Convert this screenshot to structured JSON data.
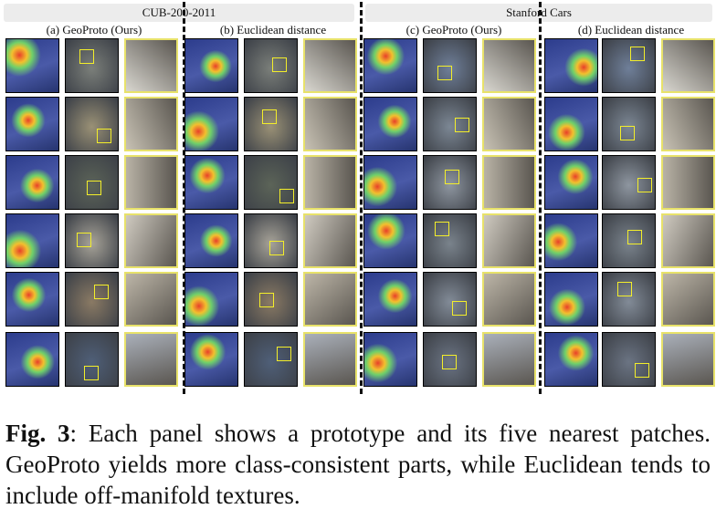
{
  "figure": {
    "dataset_left": "CUB-200-2011",
    "dataset_right": "Stanford Cars",
    "panels": [
      {
        "title": "(a) GeoProto (Ours)"
      },
      {
        "title": "(b) Euclidean distance"
      },
      {
        "title": "(c) GeoProto (Ours)"
      },
      {
        "title": "(d) Euclidean distance"
      }
    ]
  },
  "caption": {
    "label": "Fig. 3",
    "text": ":  Each panel shows a prototype and its five nearest patches.  GeoProto yields more class-consistent parts, while Euclidean tends to include off-manifold textures."
  }
}
